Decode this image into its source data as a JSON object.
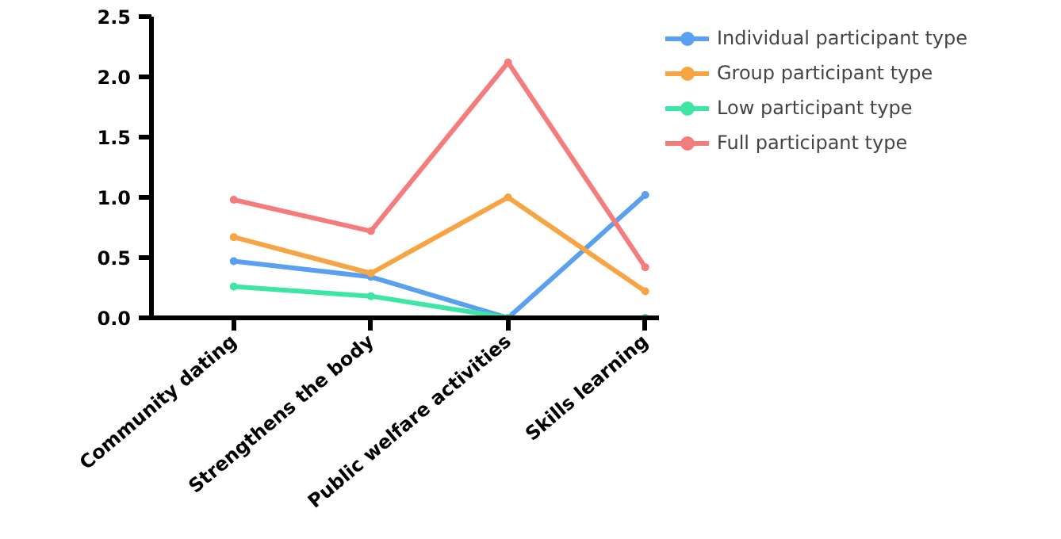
{
  "chart_data": {
    "type": "line",
    "categories": [
      "Community dating",
      "Strengthens the body",
      "Public welfare activities",
      "Skills learning"
    ],
    "series": [
      {
        "name": "Individual participant type",
        "color": "#5aa0f0",
        "values": [
          0.47,
          0.34,
          0.0,
          1.02
        ]
      },
      {
        "name": "Group participant type",
        "color": "#f7a444",
        "values": [
          0.67,
          0.37,
          1.0,
          0.22
        ]
      },
      {
        "name": "Low participant type",
        "color": "#3ee6a6",
        "values": [
          0.26,
          0.18,
          0.0,
          0.0
        ]
      },
      {
        "name": "Full participant type",
        "color": "#f57c7c",
        "values": [
          0.98,
          0.72,
          2.12,
          0.42
        ]
      }
    ],
    "ylim": [
      0,
      2.5
    ],
    "yticks": [
      {
        "value": 0,
        "label": "0.0"
      },
      {
        "value": 0.5,
        "label": "0.5"
      },
      {
        "value": 1,
        "label": "1.0"
      },
      {
        "value": 1.5,
        "label": "1.5"
      },
      {
        "value": 2,
        "label": "2.0"
      },
      {
        "value": 2.5,
        "label": "2.5"
      }
    ],
    "grid": false,
    "legend": "top right",
    "marker": "circle",
    "line_style": "solid"
  }
}
